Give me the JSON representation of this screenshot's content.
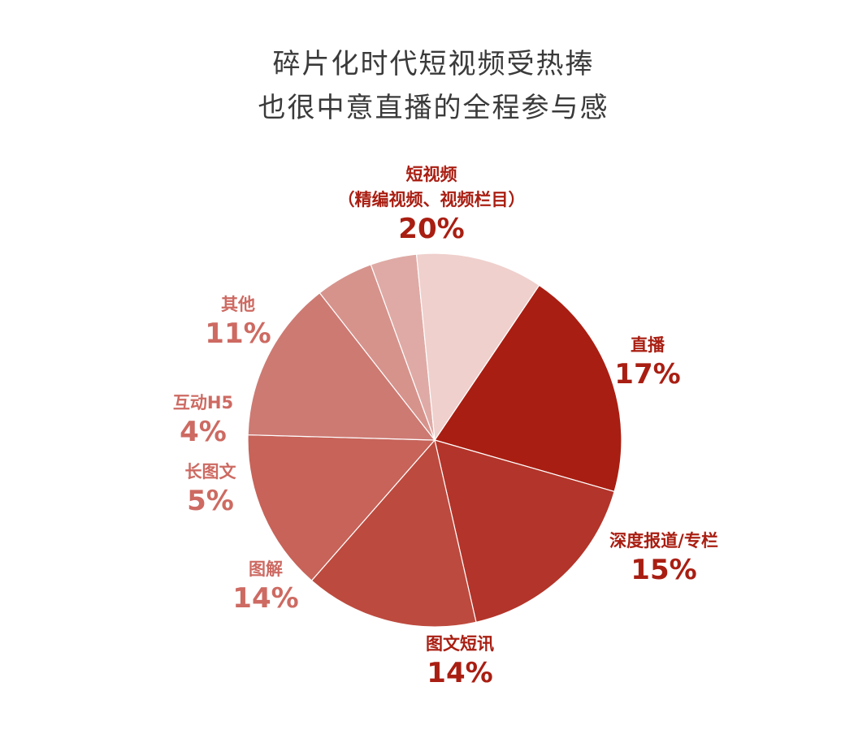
{
  "chart_data": {
    "type": "pie",
    "title": [
      "碎片化时代短视频受热捧",
      "也很中意直播的全程参与感"
    ],
    "start_angle_deg": -56,
    "direction": "clockwise",
    "slices": [
      {
        "name": "短视频",
        "subname": "（精编视频、视频栏目）",
        "value": 20,
        "label": "20%",
        "color": "#a91e12",
        "label_color": "#a91e12"
      },
      {
        "name": "直播",
        "subname": "",
        "value": 17,
        "label": "17%",
        "color": "#b3342a",
        "label_color": "#a91e12"
      },
      {
        "name": "深度报道/专栏",
        "subname": "",
        "value": 15,
        "label": "15%",
        "color": "#bd4a3e",
        "label_color": "#a91e12"
      },
      {
        "name": "图文短讯",
        "subname": "",
        "value": 14,
        "label": "14%",
        "color": "#c76359",
        "label_color": "#a91e12"
      },
      {
        "name": "图解",
        "subname": "",
        "value": 14,
        "label": "14%",
        "color": "#cd7a73",
        "label_color": "#cd6a62"
      },
      {
        "name": "长图文",
        "subname": "",
        "value": 5,
        "label": "5%",
        "color": "#d6938c",
        "label_color": "#cd6a62"
      },
      {
        "name": "互动H5",
        "subname": "",
        "value": 4,
        "label": "4%",
        "color": "#dfaaa5",
        "label_color": "#cd6a62"
      },
      {
        "name": "其他",
        "subname": "",
        "value": 11,
        "label": "11%",
        "color": "#efd0cd",
        "label_color": "#cd6a62"
      }
    ]
  }
}
